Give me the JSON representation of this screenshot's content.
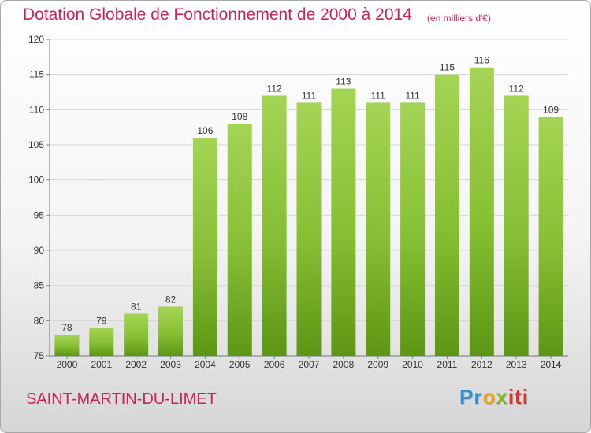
{
  "header": {
    "title": "Dotation Globale de Fonctionnement de 2000 à 2014",
    "subtitle": "(en milliers d'€)"
  },
  "footer": {
    "place": "SAINT-MARTIN-DU-LIMET",
    "logo_text": "Proxiti",
    "logo_parts": [
      "Pr",
      "o",
      "x",
      "iti"
    ]
  },
  "colors": {
    "title": "#c8235b",
    "bar_light": "#9fd14a",
    "bar_dark": "#5f9a16",
    "grid": "#d2d2d2"
  },
  "chart_data": {
    "type": "bar",
    "title": "Dotation Globale de Fonctionnement de 2000 à 2014",
    "subtitle": "(en milliers d'€)",
    "xlabel": "",
    "ylabel": "",
    "categories": [
      "2000",
      "2001",
      "2002",
      "2003",
      "2004",
      "2005",
      "2006",
      "2007",
      "2008",
      "2009",
      "2010",
      "2011",
      "2012",
      "2013",
      "2014"
    ],
    "values": [
      78,
      79,
      81,
      82,
      106,
      108,
      112,
      111,
      113,
      111,
      111,
      115,
      116,
      112,
      109
    ],
    "ylim": [
      75,
      120
    ],
    "yticks": [
      75,
      80,
      85,
      90,
      95,
      100,
      105,
      110,
      115,
      120
    ],
    "grid": true,
    "legend": "none",
    "data_labels": true
  }
}
